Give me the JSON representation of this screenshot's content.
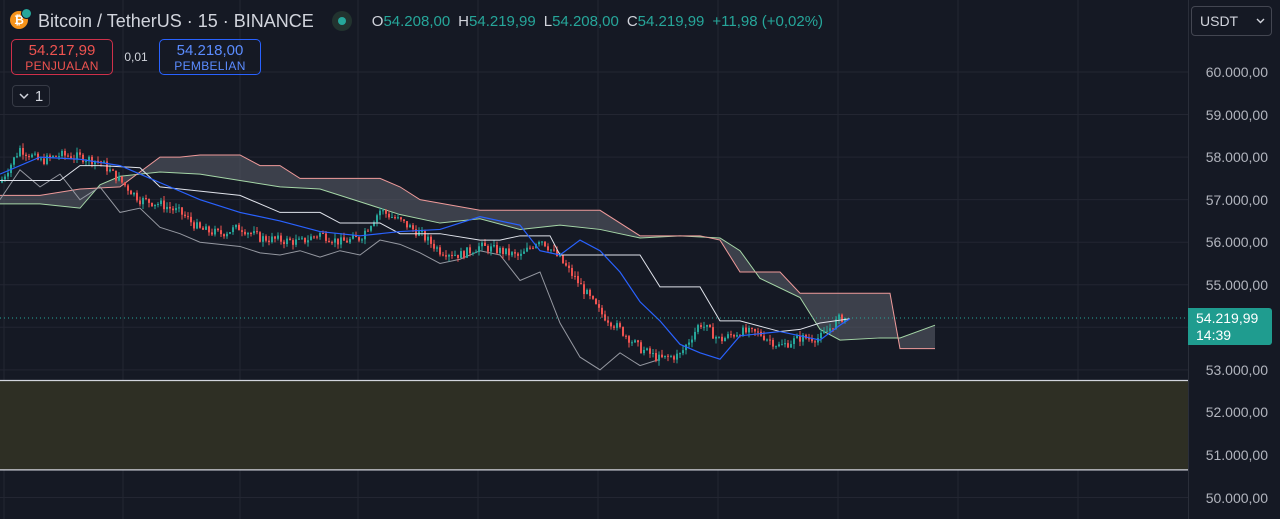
{
  "header": {
    "coin_icon_char": "₿",
    "symbol_title": "Bitcoin / TetherUS · 15 · BINANCE",
    "ohlc": [
      {
        "key": "O",
        "value": "54.208,00"
      },
      {
        "key": "H",
        "value": "54.219,99"
      },
      {
        "key": "L",
        "value": "54.208,00"
      },
      {
        "key": "C",
        "value": "54.219,99"
      }
    ],
    "change": "+11,98 (+0,02%)"
  },
  "trade": {
    "sell_price": "54.217,99",
    "sell_label": "PENJUALAN",
    "spread": "0,01",
    "buy_price": "54.218,00",
    "buy_label": "PEMBELIAN"
  },
  "indicators_toggle": {
    "count": "1"
  },
  "currency_select": {
    "value": "USDT"
  },
  "price_axis": {
    "ticks": [
      "60.000,00",
      "59.000,00",
      "58.000,00",
      "57.000,00",
      "56.000,00",
      "55.000,00",
      "54.000,00",
      "53.000,00",
      "52.000,00",
      "51.000,00",
      "50.000,00"
    ],
    "current_price": "54.219,99",
    "countdown": "14:39"
  },
  "colors": {
    "background": "#151924",
    "grid": "#232632",
    "up": "#26a69a",
    "down": "#ef5350",
    "tenkan": "#2962ff",
    "kijun": "#e0e3eb",
    "lagging": "#9598a1",
    "span_a": "#a5d6a7",
    "span_b": "#ef9a9a",
    "zone_fill": "#2e2f24",
    "cloud_fill": "#5d606b"
  },
  "chart_data": {
    "type": "candlestick",
    "symbol": "Bitcoin / TetherUS",
    "interval": "15",
    "exchange": "BINANCE",
    "ylim": [
      50000,
      60250
    ],
    "last_price": 54219.99,
    "highlight_zone": [
      50650,
      52750
    ],
    "series": [
      {
        "name": "price_close",
        "x": [
          0,
          20,
          40,
          60,
          80,
          100,
          120,
          140,
          160,
          180,
          200,
          220,
          240,
          260,
          280,
          300,
          320,
          340,
          360,
          380,
          400,
          420,
          440,
          460,
          480,
          500,
          520,
          540,
          560,
          580,
          600,
          620,
          640,
          660,
          680,
          700,
          720,
          740,
          760,
          780,
          800,
          820,
          840
        ],
        "values": [
          57400,
          58200,
          57900,
          58050,
          58000,
          57900,
          57450,
          57000,
          56900,
          56700,
          56300,
          56200,
          56350,
          56100,
          56050,
          56000,
          56200,
          56000,
          56100,
          56750,
          56500,
          56200,
          55800,
          55700,
          55900,
          55800,
          55650,
          56100,
          55600,
          55000,
          54350,
          53950,
          53500,
          53250,
          53350,
          54100,
          53700,
          53900,
          53850,
          53550,
          53750,
          53750,
          54220
        ]
      },
      {
        "name": "tenkan_sen",
        "x": [
          0,
          40,
          80,
          120,
          160,
          200,
          240,
          280,
          320,
          360,
          400,
          440,
          480,
          520,
          540,
          560,
          580,
          600,
          620,
          640,
          660,
          680,
          700,
          720,
          740,
          760,
          780,
          800,
          820,
          840,
          850
        ],
        "values": [
          57600,
          58000,
          57950,
          57800,
          57400,
          57000,
          56700,
          56500,
          56250,
          56150,
          56250,
          56300,
          56600,
          56400,
          55800,
          55700,
          56050,
          55800,
          55300,
          54600,
          54150,
          53600,
          53400,
          53250,
          53800,
          53850,
          53900,
          53800,
          53700,
          54050,
          54200
        ]
      },
      {
        "name": "kijun_sen",
        "x": [
          0,
          60,
          80,
          100,
          140,
          160,
          200,
          240,
          280,
          320,
          340,
          380,
          400,
          440,
          480,
          500,
          520,
          550,
          560,
          600,
          640,
          660,
          700,
          720,
          740,
          780,
          800,
          820,
          850
        ],
        "values": [
          57450,
          57450,
          57800,
          57800,
          57750,
          57300,
          57200,
          57100,
          56700,
          56700,
          56450,
          56450,
          56200,
          56200,
          56050,
          56050,
          56150,
          56150,
          55700,
          55700,
          55700,
          54950,
          54950,
          54150,
          54150,
          53900,
          53950,
          54100,
          54200
        ]
      },
      {
        "name": "chikou_span",
        "x": [
          0,
          20,
          40,
          60,
          80,
          100,
          120,
          140,
          160,
          180,
          200,
          220,
          240,
          260,
          280,
          300,
          320,
          340,
          360,
          380,
          400,
          420,
          440,
          460,
          480,
          500,
          520,
          540,
          560,
          580,
          600,
          620,
          640,
          660
        ],
        "values": [
          57000,
          57700,
          57300,
          57600,
          57000,
          57300,
          56700,
          56800,
          56350,
          56200,
          56000,
          55950,
          55900,
          55750,
          55700,
          55800,
          55650,
          55800,
          55700,
          56050,
          55950,
          55750,
          55500,
          55600,
          55800,
          55700,
          55100,
          55300,
          54100,
          53300,
          53000,
          53400,
          53100,
          53250
        ]
      },
      {
        "name": "senkou_span_a",
        "x": [
          0,
          40,
          80,
          100,
          120,
          160,
          200,
          240,
          280,
          320,
          360,
          400,
          440,
          480,
          520,
          560,
          600,
          640,
          680,
          720,
          740,
          760,
          800,
          820,
          840,
          880,
          900,
          935
        ],
        "values": [
          56900,
          56900,
          56800,
          57350,
          57550,
          57650,
          57600,
          57450,
          57300,
          57250,
          56950,
          56650,
          56450,
          56550,
          56300,
          56400,
          56300,
          56100,
          56150,
          56100,
          55800,
          55150,
          54700,
          53950,
          53700,
          53750,
          53750,
          54050
        ]
      },
      {
        "name": "senkou_span_b",
        "x": [
          0,
          40,
          80,
          120,
          160,
          180,
          200,
          240,
          260,
          280,
          300,
          380,
          400,
          420,
          480,
          520,
          560,
          600,
          640,
          700,
          720,
          740,
          780,
          800,
          820,
          860,
          890,
          900,
          935
        ],
        "values": [
          57100,
          57100,
          57250,
          57300,
          58000,
          58000,
          58050,
          58050,
          57800,
          57800,
          57500,
          57500,
          57300,
          57000,
          56750,
          56750,
          56750,
          56750,
          56150,
          56150,
          56050,
          55300,
          55300,
          54800,
          54800,
          54800,
          54800,
          53500,
          53500
        ]
      }
    ]
  }
}
